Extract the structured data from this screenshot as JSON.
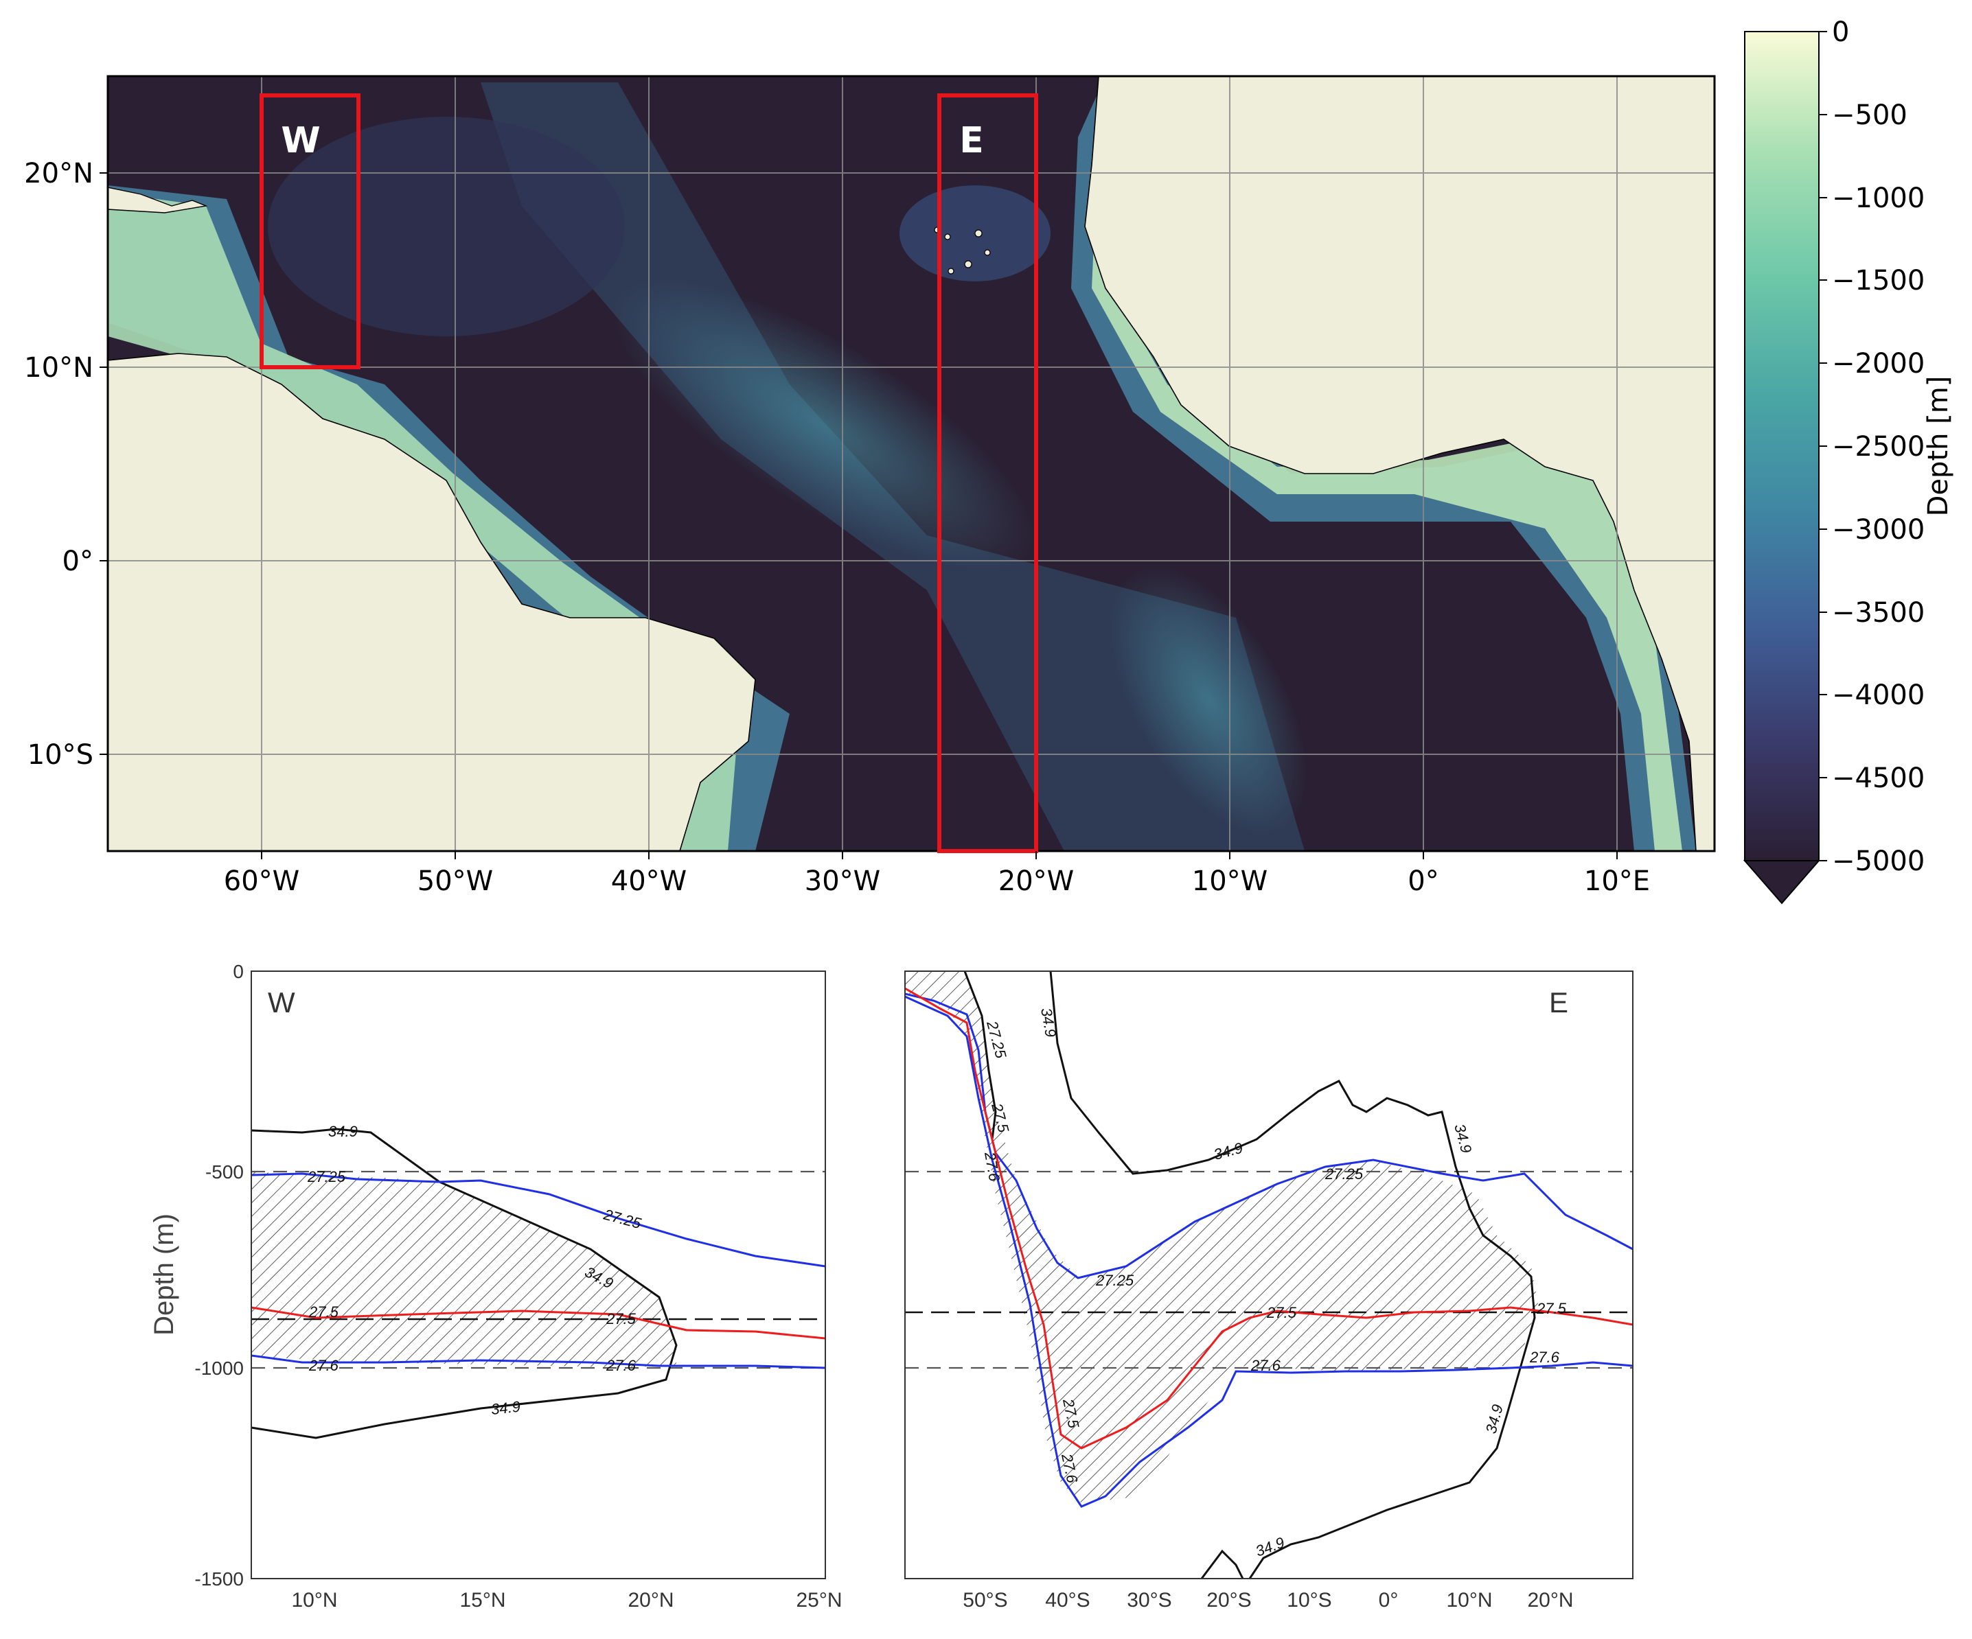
{
  "map": {
    "lon_ticks": [
      "60°W",
      "50°W",
      "40°W",
      "30°W",
      "20°W",
      "10°W",
      "0°",
      "10°E"
    ],
    "lat_ticks": [
      "20°N",
      "10°N",
      "0°",
      "10°S"
    ],
    "boxes": [
      {
        "label": "W",
        "lon_range": [
          -60,
          -55
        ],
        "lat_range": [
          10,
          24
        ]
      },
      {
        "label": "E",
        "lon_range": [
          -25,
          -20
        ],
        "lat_range": [
          -15,
          24
        ]
      }
    ],
    "colors": {
      "land": "#efeedb",
      "box": "#e8141c",
      "grid": "#8a8a8a",
      "deep": "#2a1f33",
      "shelf": "#f6fbd0"
    }
  },
  "colorbar": {
    "label": "Depth [m]",
    "ticks": [
      "0",
      "−500",
      "−1000",
      "−1500",
      "−2000",
      "−2500",
      "−3000",
      "−3500",
      "−4000",
      "−4500",
      "−5000"
    ],
    "range": [
      -5000,
      0
    ],
    "colors": [
      "#2a1f33",
      "#3a3a6a",
      "#3f5e96",
      "#3f86a3",
      "#4aa6a4",
      "#6cc7a8",
      "#a6dfb2",
      "#f8fbd6"
    ]
  },
  "sections": {
    "y_label": "Depth (m)",
    "y_ticks": [
      "0",
      "-500",
      "-1000",
      "-1500"
    ],
    "west": {
      "label": "W",
      "x_ticks": [
        "10°N",
        "15°N",
        "20°N",
        "25°N"
      ],
      "contour_labels": [
        "34.9",
        "27.25",
        "27.25",
        "34.9",
        "27.5",
        "27.5",
        "27.6",
        "27.6",
        "34.9"
      ]
    },
    "east": {
      "label": "E",
      "x_ticks": [
        "50°S",
        "40°S",
        "30°S",
        "20°S",
        "10°S",
        "0°",
        "10°N",
        "20°N"
      ],
      "contour_labels": [
        "34.9",
        "27.25",
        "27.5",
        "27.6",
        "34.9",
        "34.9",
        "27.25",
        "27.25",
        "27.5",
        "27.5",
        "27.6",
        "27.6",
        "27.5",
        "27.6",
        "34.9",
        "34.9"
      ]
    },
    "colors": {
      "sigma_27_25": "#1f2fe6",
      "sigma_27_5": "#ee1c1c",
      "sigma_27_6": "#1f2fe6",
      "salinity_34_9": "#111111"
    }
  }
}
